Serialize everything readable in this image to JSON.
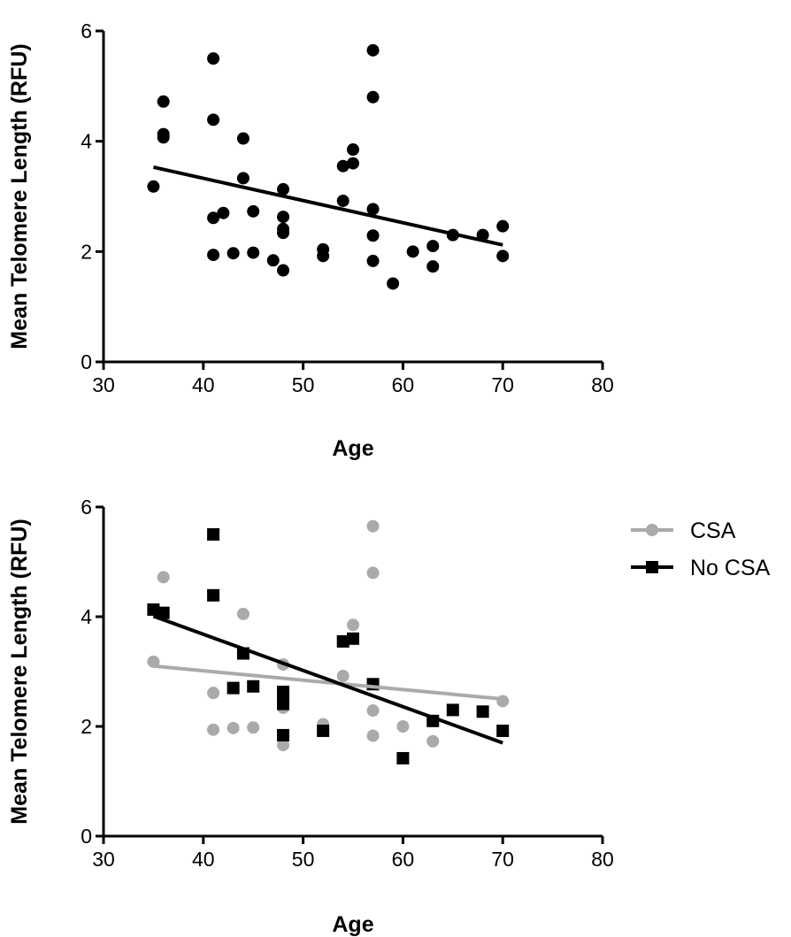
{
  "chart_data": [
    {
      "type": "scatter",
      "xlabel": "Age",
      "ylabel": "Mean Telomere Length (RFU)",
      "xlim": [
        30,
        80
      ],
      "ylim": [
        0,
        6
      ],
      "xticks": [
        30,
        40,
        50,
        60,
        70,
        80
      ],
      "yticks": [
        0,
        2,
        4,
        6
      ],
      "legend": "none",
      "series": [
        {
          "color": "#000000",
          "marker": "circle",
          "points": [
            [
              35,
              3.18
            ],
            [
              36,
              4.72
            ],
            [
              36,
              4.13
            ],
            [
              36,
              4.07
            ],
            [
              41,
              5.5
            ],
            [
              41,
              4.39
            ],
            [
              41,
              2.61
            ],
            [
              41,
              1.94
            ],
            [
              42,
              2.7
            ],
            [
              43,
              1.97
            ],
            [
              44,
              4.05
            ],
            [
              44,
              3.33
            ],
            [
              45,
              2.73
            ],
            [
              45,
              1.98
            ],
            [
              47,
              1.84
            ],
            [
              48,
              3.13
            ],
            [
              48,
              2.63
            ],
            [
              48,
              2.41
            ],
            [
              48,
              2.34
            ],
            [
              48,
              1.66
            ],
            [
              52,
              2.04
            ],
            [
              52,
              1.92
            ],
            [
              54,
              3.55
            ],
            [
              54,
              2.92
            ],
            [
              55,
              3.85
            ],
            [
              55,
              3.6
            ],
            [
              57,
              5.65
            ],
            [
              57,
              4.8
            ],
            [
              57,
              2.77
            ],
            [
              57,
              2.29
            ],
            [
              57,
              1.83
            ],
            [
              59,
              1.42
            ],
            [
              61,
              2.0
            ],
            [
              63,
              2.1
            ],
            [
              63,
              1.73
            ],
            [
              65,
              2.3
            ],
            [
              68,
              2.3
            ],
            [
              70,
              2.46
            ],
            [
              70,
              1.92
            ]
          ],
          "fit": {
            "x": [
              35,
              70
            ],
            "y": [
              3.53,
              2.12
            ]
          }
        }
      ]
    },
    {
      "type": "scatter",
      "xlabel": "Age",
      "ylabel": "Mean Telomere Length (RFU)",
      "xlim": [
        30,
        80
      ],
      "ylim": [
        0,
        6
      ],
      "xticks": [
        30,
        40,
        50,
        60,
        70,
        80
      ],
      "yticks": [
        0,
        2,
        4,
        6
      ],
      "legend": "right",
      "series": [
        {
          "name": "CSA",
          "color": "#aaaaaa",
          "marker": "circle",
          "points": [
            [
              35,
              3.18
            ],
            [
              36,
              4.72
            ],
            [
              41,
              2.61
            ],
            [
              41,
              1.94
            ],
            [
              43,
              1.97
            ],
            [
              44,
              4.05
            ],
            [
              45,
              1.98
            ],
            [
              48,
              3.13
            ],
            [
              48,
              2.34
            ],
            [
              48,
              1.66
            ],
            [
              52,
              2.04
            ],
            [
              54,
              2.92
            ],
            [
              55,
              3.85
            ],
            [
              57,
              5.65
            ],
            [
              57,
              4.8
            ],
            [
              57,
              2.29
            ],
            [
              57,
              1.83
            ],
            [
              60,
              2.0
            ],
            [
              63,
              1.73
            ],
            [
              70,
              2.46
            ]
          ],
          "fit": {
            "x": [
              35,
              70
            ],
            "y": [
              3.1,
              2.5
            ]
          }
        },
        {
          "name": "No CSA",
          "color": "#000000",
          "marker": "square",
          "points": [
            [
              35,
              4.13
            ],
            [
              36,
              4.07
            ],
            [
              41,
              5.5
            ],
            [
              41,
              4.39
            ],
            [
              43,
              2.7
            ],
            [
              44,
              3.33
            ],
            [
              45,
              2.73
            ],
            [
              48,
              2.63
            ],
            [
              48,
              2.41
            ],
            [
              48,
              1.84
            ],
            [
              52,
              1.92
            ],
            [
              54,
              3.55
            ],
            [
              55,
              3.6
            ],
            [
              57,
              2.77
            ],
            [
              60,
              1.42
            ],
            [
              63,
              2.1
            ],
            [
              65,
              2.3
            ],
            [
              68,
              2.27
            ],
            [
              70,
              1.92
            ]
          ],
          "fit": {
            "x": [
              35,
              70
            ],
            "y": [
              4.01,
              1.7
            ]
          }
        }
      ]
    }
  ]
}
